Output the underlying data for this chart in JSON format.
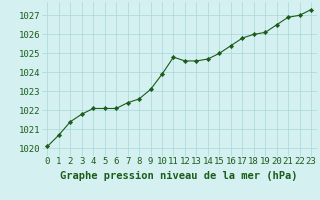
{
  "x": [
    0,
    1,
    2,
    3,
    4,
    5,
    6,
    7,
    8,
    9,
    10,
    11,
    12,
    13,
    14,
    15,
    16,
    17,
    18,
    19,
    20,
    21,
    22,
    23
  ],
  "y": [
    1020.1,
    1020.7,
    1021.4,
    1021.8,
    1022.1,
    1022.1,
    1022.1,
    1022.4,
    1022.6,
    1023.1,
    1023.9,
    1024.8,
    1024.6,
    1024.6,
    1024.7,
    1025.0,
    1025.4,
    1025.8,
    1026.0,
    1026.1,
    1026.5,
    1026.9,
    1027.0,
    1027.3
  ],
  "line_color": "#1a5c1a",
  "marker_color": "#1a5c1a",
  "bg_color": "#d4f0f0",
  "grid_color": "#a8d8d8",
  "title": "Graphe pression niveau de la mer (hPa)",
  "ylim": [
    1019.6,
    1027.7
  ],
  "xlim": [
    -0.5,
    23.5
  ],
  "yticks": [
    1020,
    1021,
    1022,
    1023,
    1024,
    1025,
    1026,
    1027
  ],
  "xticks": [
    0,
    1,
    2,
    3,
    4,
    5,
    6,
    7,
    8,
    9,
    10,
    11,
    12,
    13,
    14,
    15,
    16,
    17,
    18,
    19,
    20,
    21,
    22,
    23
  ],
  "title_fontsize": 7.5,
  "tick_fontsize": 6.5,
  "title_color": "#1a5c1a",
  "tick_color": "#1a5c1a"
}
